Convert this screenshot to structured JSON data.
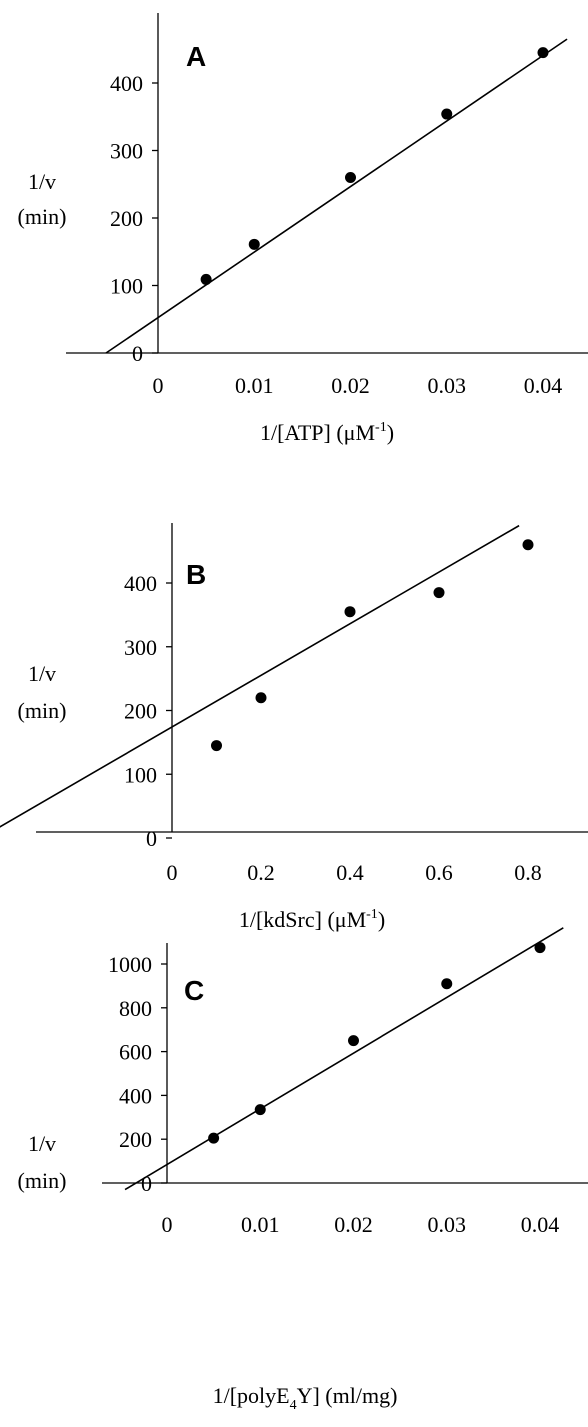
{
  "chart_data": [
    {
      "type": "scatter",
      "panel": "A",
      "ylabel": [
        "1/v",
        "(min)"
      ],
      "xlabel": {
        "main": "1/[ATP] (",
        "mu": "μM",
        "sup": "-1",
        "end": ")"
      },
      "xlim": [
        -0.0055,
        0.0435
      ],
      "ylim": [
        0,
        460
      ],
      "xticks": [
        0,
        0.01,
        0.02,
        0.03,
        0.04
      ],
      "xtick_labels": [
        "0",
        "0.01",
        "0.02",
        "0.03",
        "0.04"
      ],
      "yticks": [
        0,
        100,
        200,
        300,
        400
      ],
      "ytick_labels": [
        "0",
        "100",
        "200",
        "300",
        "400"
      ],
      "x": [
        0.005,
        0.01,
        0.02,
        0.03,
        0.04
      ],
      "y": [
        109,
        161,
        260,
        354,
        445
      ],
      "fit": {
        "x": [
          -0.0054,
          0.0425
        ],
        "y": [
          0,
          465
        ]
      }
    },
    {
      "type": "scatter",
      "panel": "B",
      "ylabel": [
        "1/v",
        "(min)"
      ],
      "xlabel": {
        "main": "1/[kdSrc] (",
        "mu": "μM",
        "sup": "-1",
        "end": ")"
      },
      "xlim": [
        -0.5,
        0.95
      ],
      "ylim": [
        0,
        480
      ],
      "xticks": [
        0,
        0.2,
        0.4,
        0.6,
        0.8
      ],
      "xtick_labels": [
        "0",
        "0.2",
        "0.4",
        "0.6",
        "0.8"
      ],
      "yticks": [
        0,
        100,
        200,
        300,
        400
      ],
      "ytick_labels": [
        "0",
        "100",
        "200",
        "300",
        "400"
      ],
      "x": [
        0.1,
        0.2,
        0.4,
        0.6,
        0.8
      ],
      "y": [
        145,
        220,
        355,
        385,
        460
      ],
      "fit": {
        "x": [
          -0.43,
          0.78
        ],
        "y": [
          0,
          490
        ]
      }
    },
    {
      "type": "scatter",
      "panel": "C",
      "ylabel": [
        "1/v",
        "(min)"
      ],
      "xlabel": {
        "main": "1/[polyE",
        "sub": "4",
        "end": "Y] (ml/mg)"
      },
      "xlim": [
        -0.0055,
        0.0435
      ],
      "ylim": [
        -20,
        1180
      ],
      "xticks": [
        0,
        0.01,
        0.02,
        0.03,
        0.04
      ],
      "xtick_labels": [
        "0",
        "0.01",
        "0.02",
        "0.03",
        "0.04"
      ],
      "yticks": [
        0,
        200,
        400,
        600,
        800,
        1000
      ],
      "ytick_labels": [
        "0",
        "200",
        "400",
        "600",
        "800",
        "1000"
      ],
      "x": [
        0.005,
        0.01,
        0.02,
        0.03,
        0.04
      ],
      "y": [
        205,
        335,
        650,
        910,
        1075
      ],
      "fit": {
        "x": [
          -0.0045,
          0.0425
        ],
        "y": [
          -30,
          1165
        ]
      }
    }
  ]
}
